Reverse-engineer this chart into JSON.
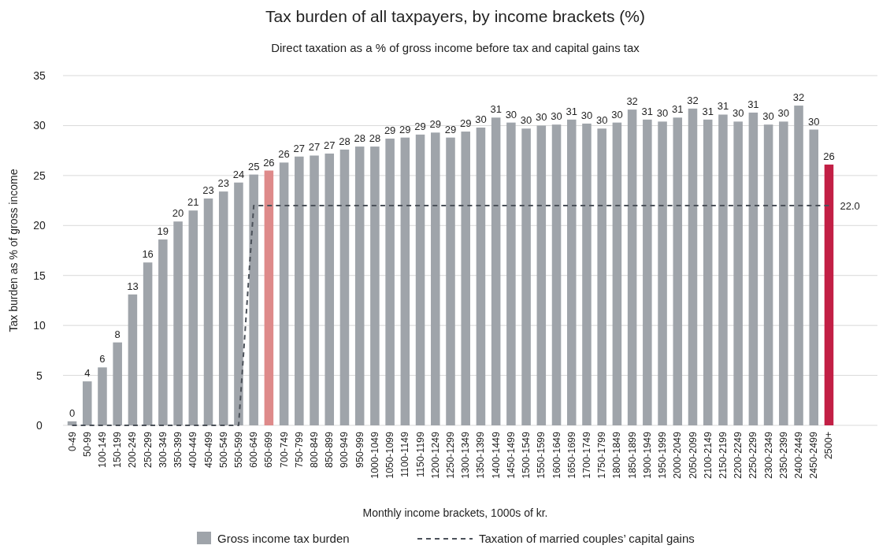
{
  "chart_data": {
    "type": "bar",
    "title": "Tax burden of all taxpayers, by income brackets (%)",
    "subtitle": "Direct taxation as a % of gross income before tax and capital gains tax",
    "xlabel": "Monthly income brackets, 1000s of kr.",
    "ylabel": "Tax burden as % of gross income",
    "categories": [
      "0-49",
      "50-99",
      "100-149",
      "150-199",
      "200-249",
      "250-299",
      "300-349",
      "350-399",
      "400-449",
      "450-499",
      "500-549",
      "550-599",
      "600-649",
      "650-699",
      "700-749",
      "750-799",
      "800-849",
      "850-899",
      "900-949",
      "950-999",
      "1000-1049",
      "1050-1099",
      "1100-1149",
      "1150-1199",
      "1200-1249",
      "1250-1299",
      "1300-1349",
      "1350-1399",
      "1400-1449",
      "1450-1499",
      "1500-1549",
      "1550-1599",
      "1600-1649",
      "1650-1699",
      "1700-1749",
      "1750-1799",
      "1800-1849",
      "1850-1899",
      "1900-1949",
      "1950-1999",
      "2000-2049",
      "2050-2099",
      "2100-2149",
      "2150-2199",
      "2200-2249",
      "2250-2299",
      "2300-2349",
      "2350-2399",
      "2400-2449",
      "2450-2499",
      "2500+"
    ],
    "series": [
      {
        "name": "Gross income tax burden",
        "color": "#9fa4aa",
        "colors": [
          "#9fa4aa",
          "#9fa4aa",
          "#9fa4aa",
          "#9fa4aa",
          "#9fa4aa",
          "#9fa4aa",
          "#9fa4aa",
          "#9fa4aa",
          "#9fa4aa",
          "#9fa4aa",
          "#9fa4aa",
          "#9fa4aa",
          "#9fa4aa",
          "#de8a8a",
          "#9fa4aa",
          "#9fa4aa",
          "#9fa4aa",
          "#9fa4aa",
          "#9fa4aa",
          "#9fa4aa",
          "#9fa4aa",
          "#9fa4aa",
          "#9fa4aa",
          "#9fa4aa",
          "#9fa4aa",
          "#9fa4aa",
          "#9fa4aa",
          "#9fa4aa",
          "#9fa4aa",
          "#9fa4aa",
          "#9fa4aa",
          "#9fa4aa",
          "#9fa4aa",
          "#9fa4aa",
          "#9fa4aa",
          "#9fa4aa",
          "#9fa4aa",
          "#9fa4aa",
          "#9fa4aa",
          "#9fa4aa",
          "#9fa4aa",
          "#9fa4aa",
          "#9fa4aa",
          "#9fa4aa",
          "#9fa4aa",
          "#9fa4aa",
          "#9fa4aa",
          "#9fa4aa",
          "#9fa4aa",
          "#9fa4aa",
          "#c21f45"
        ],
        "values": [
          0.4,
          4.4,
          5.8,
          8.3,
          13.1,
          16.3,
          18.6,
          20.4,
          21.5,
          22.7,
          23.4,
          24.3,
          25.1,
          25.5,
          26.3,
          26.9,
          27.0,
          27.2,
          27.6,
          27.9,
          27.9,
          28.7,
          28.8,
          29.1,
          29.3,
          28.8,
          29.4,
          29.8,
          30.8,
          30.3,
          29.7,
          30.0,
          30.1,
          30.6,
          30.2,
          29.7,
          30.3,
          31.6,
          30.6,
          30.4,
          30.8,
          31.7,
          30.6,
          31.1,
          30.4,
          31.3,
          30.1,
          30.4,
          32.0,
          29.6,
          26.1
        ],
        "value_labels": [
          "0",
          "4",
          "6",
          "8",
          "13",
          "16",
          "19",
          "20",
          "21",
          "23",
          "23",
          "24",
          "25",
          "26",
          "26",
          "27",
          "27",
          "27",
          "28",
          "28",
          "28",
          "29",
          "29",
          "29",
          "29",
          "29",
          "29",
          "30",
          "31",
          "30",
          "30",
          "30",
          "30",
          "31",
          "30",
          "30",
          "30",
          "32",
          "31",
          "30",
          "31",
          "32",
          "31",
          "31",
          "30",
          "31",
          "30",
          "30",
          "32",
          "30",
          "26"
        ]
      },
      {
        "name": "Taxation of married couples’ capital gains",
        "type": "line",
        "color": "#4b5159",
        "line_style": "dashed",
        "values": [
          0,
          0,
          0,
          0,
          0,
          0,
          0,
          0,
          0,
          0,
          0,
          0,
          22,
          22,
          22,
          22,
          22,
          22,
          22,
          22,
          22,
          22,
          22,
          22,
          22,
          22,
          22,
          22,
          22,
          22,
          22,
          22,
          22,
          22,
          22,
          22,
          22,
          22,
          22,
          22,
          22,
          22,
          22,
          22,
          22,
          22,
          22,
          22,
          22,
          22,
          22
        ],
        "value_labels": [
          null,
          null,
          null,
          null,
          null,
          null,
          null,
          null,
          null,
          null,
          null,
          null,
          null,
          null,
          null,
          null,
          null,
          null,
          null,
          null,
          null,
          null,
          null,
          null,
          null,
          null,
          null,
          null,
          null,
          null,
          null,
          null,
          null,
          null,
          null,
          null,
          null,
          null,
          null,
          null,
          null,
          null,
          null,
          null,
          null,
          null,
          null,
          null,
          null,
          null,
          "22.0"
        ]
      }
    ],
    "ylim": [
      0,
      35
    ],
    "yticks": [
      0,
      5,
      10,
      15,
      20,
      25,
      30,
      35
    ],
    "grid": "y",
    "legend": "bottom"
  }
}
